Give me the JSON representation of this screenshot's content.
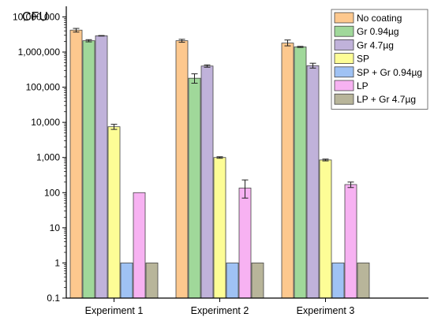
{
  "chart_data": {
    "type": "bar",
    "ylabel": "CFU",
    "xlabel": "",
    "title": "",
    "yscale": "log",
    "ylim": [
      0.1,
      20000000
    ],
    "yticks": [
      0.1,
      1,
      10,
      100,
      1000,
      10000,
      100000,
      1000000,
      10000000
    ],
    "ytick_labels": [
      "0.1",
      "1",
      "10",
      "100",
      "1,000",
      "10,000",
      "100,000",
      "1,000,000",
      "10,000,000"
    ],
    "categories": [
      "Experiment 1",
      "Experiment 2",
      "Experiment 3"
    ],
    "legend_position": "top-right",
    "series": [
      {
        "name": "No coating",
        "color": "#FDC88E",
        "values": [
          4200000,
          2100000,
          1800000
        ],
        "err_low": [
          3700000,
          1900000,
          1500000
        ],
        "err_high": [
          4700000,
          2300000,
          2200000
        ]
      },
      {
        "name": "Gr 0.94µg",
        "color": "#A0D89A",
        "values": [
          2100000,
          180000,
          1400000
        ],
        "err_low": [
          1950000,
          130000,
          1350000
        ],
        "err_high": [
          2250000,
          240000,
          1450000
        ]
      },
      {
        "name": "Gr 4.7µg",
        "color": "#C0B2DA",
        "values": [
          2900000,
          400000,
          410000
        ],
        "err_low": [
          2850000,
          370000,
          350000
        ],
        "err_high": [
          2950000,
          430000,
          480000
        ]
      },
      {
        "name": "SP",
        "color": "#FDFD96",
        "values": [
          7500,
          1000,
          850
        ],
        "err_low": [
          6300,
          950,
          800
        ],
        "err_high": [
          8800,
          1050,
          900
        ]
      },
      {
        "name": "SP + Gr 0.94µg",
        "color": "#9FC2F4",
        "values": [
          1,
          1,
          1
        ],
        "err_low": [
          null,
          null,
          null
        ],
        "err_high": [
          null,
          null,
          null
        ]
      },
      {
        "name": "LP",
        "color": "#F7B2F2",
        "values": [
          100,
          135,
          170
        ],
        "err_low": [
          null,
          70,
          140
        ],
        "err_high": [
          null,
          230,
          200
        ]
      },
      {
        "name": "LP + Gr 4.7µg",
        "color": "#B8B59A",
        "values": [
          1,
          1,
          1
        ],
        "err_low": [
          null,
          null,
          null
        ],
        "err_high": [
          null,
          null,
          null
        ]
      }
    ]
  }
}
